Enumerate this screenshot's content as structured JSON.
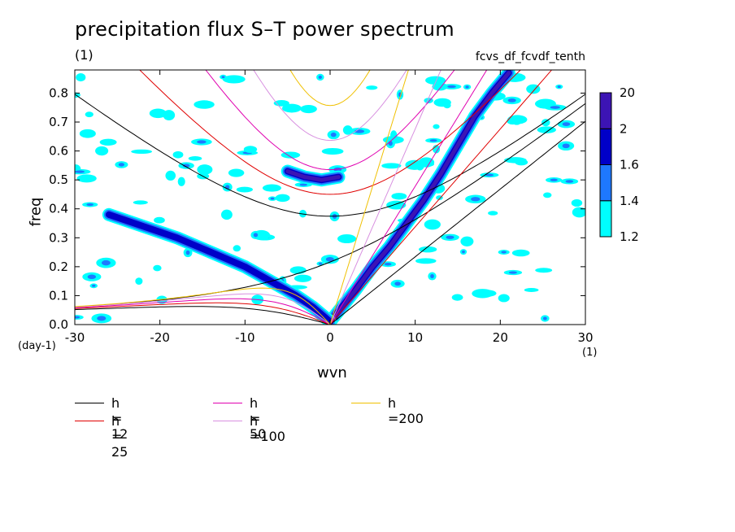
{
  "title": "precipitation flux S–T power spectrum",
  "units_label": "(1)",
  "variable_name": "fcvs_df_fcvdf_tenth",
  "chart_data": {
    "type": "heatmap",
    "xlabel": "wvn",
    "ylabel": "freq",
    "x_unit": "(1)",
    "y_unit": "(day-1)",
    "xlim": [
      -30,
      30
    ],
    "ylim": [
      0,
      0.88
    ],
    "xticks": [
      -30,
      -20,
      -10,
      0,
      10,
      20,
      30
    ],
    "xtick_labels": [
      "-30",
      "-20",
      "-10",
      "0",
      "10",
      "20",
      "30"
    ],
    "yticks": [
      0.0,
      0.1,
      0.2,
      0.3,
      0.4,
      0.5,
      0.6,
      0.7,
      0.8
    ],
    "ytick_labels": [
      "0.0",
      "0.1",
      "0.2",
      "0.3",
      "0.4",
      "0.5",
      "0.6",
      "0.7",
      "0.8"
    ],
    "colorbar": {
      "levels": [
        "1.2",
        "1.4",
        "1.6",
        "2",
        "20"
      ],
      "colors": [
        "#00ffff",
        "#1e78ff",
        "#0000c8",
        "#3c14b4"
      ]
    },
    "contour_features": [
      {
        "name": "kelvin-band",
        "points": [
          [
            0,
            0.01
          ],
          [
            3,
            0.12
          ],
          [
            5,
            0.2
          ],
          [
            7,
            0.27
          ],
          [
            9,
            0.35
          ],
          [
            11,
            0.43
          ],
          [
            13,
            0.52
          ],
          [
            15,
            0.62
          ],
          [
            17,
            0.72
          ],
          [
            19,
            0.8
          ],
          [
            21,
            0.87
          ]
        ],
        "level": 4
      },
      {
        "name": "rossby-band",
        "points": [
          [
            0,
            0.01
          ],
          [
            -2,
            0.06
          ],
          [
            -4,
            0.1
          ],
          [
            -7,
            0.15
          ],
          [
            -10,
            0.2
          ],
          [
            -14,
            0.25
          ],
          [
            -18,
            0.3
          ],
          [
            -22,
            0.34
          ],
          [
            -26,
            0.38
          ]
        ],
        "level": 3
      },
      {
        "name": "ig-blob",
        "points": [
          [
            -5,
            0.53
          ],
          [
            -3,
            0.51
          ],
          [
            -1,
            0.5
          ],
          [
            1,
            0.51
          ]
        ],
        "level": 4
      }
    ],
    "dispersion_curves": [
      {
        "name": "h = 12",
        "h": 12,
        "color": "#000000"
      },
      {
        "name": "h = 25",
        "h": 25,
        "color": "#e00000"
      },
      {
        "name": "h = 50",
        "h": 50,
        "color": "#e000b0"
      },
      {
        "name": "h =100",
        "h": 100,
        "color": "#d890e0"
      },
      {
        "name": "h =200",
        "h": 200,
        "color": "#f0c000"
      }
    ]
  }
}
